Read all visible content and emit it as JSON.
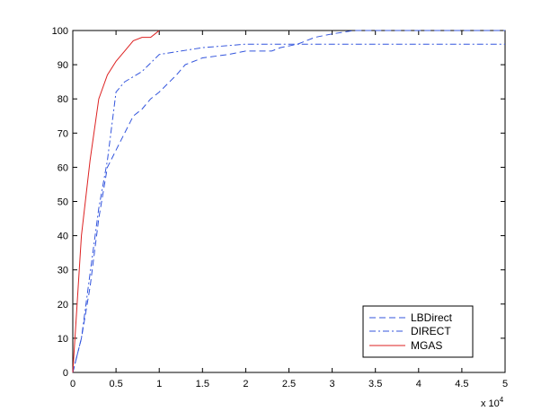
{
  "chart_data": {
    "type": "line",
    "title": "",
    "xlabel": "",
    "ylabel": "",
    "x_exponent_label": "x 10",
    "x_exponent_power": "4",
    "xlim": [
      0,
      5
    ],
    "ylim": [
      0,
      100
    ],
    "x_ticks": [
      0,
      0.5,
      1,
      1.5,
      2,
      2.5,
      3,
      3.5,
      4,
      4.5,
      5
    ],
    "x_tick_labels": [
      "0",
      "0.5",
      "1",
      "1.5",
      "2",
      "2.5",
      "3",
      "3.5",
      "4",
      "4.5",
      "5"
    ],
    "y_ticks": [
      0,
      10,
      20,
      30,
      40,
      50,
      60,
      70,
      80,
      90,
      100
    ],
    "y_tick_labels": [
      "0",
      "10",
      "20",
      "30",
      "40",
      "50",
      "60",
      "70",
      "80",
      "90",
      "100"
    ],
    "grid": false,
    "legend_position": "bottom-right",
    "series": [
      {
        "name": "LBDirect",
        "color": "#3355dd",
        "dash": "dashed",
        "points": [
          [
            0,
            0
          ],
          [
            0.1,
            10
          ],
          [
            0.2,
            25
          ],
          [
            0.3,
            45
          ],
          [
            0.4,
            60
          ],
          [
            0.5,
            65
          ],
          [
            0.6,
            70
          ],
          [
            0.7,
            75
          ],
          [
            0.8,
            77
          ],
          [
            0.9,
            80
          ],
          [
            1.0,
            82
          ],
          [
            1.2,
            87
          ],
          [
            1.3,
            90
          ],
          [
            1.5,
            92
          ],
          [
            1.8,
            93
          ],
          [
            2.0,
            94
          ],
          [
            2.3,
            94
          ],
          [
            2.4,
            95
          ],
          [
            2.6,
            96
          ],
          [
            2.8,
            98
          ],
          [
            3.0,
            99
          ],
          [
            3.25,
            100
          ],
          [
            5.0,
            100
          ]
        ]
      },
      {
        "name": "DIRECT",
        "color": "#3355dd",
        "dash": "dashdot",
        "points": [
          [
            0,
            0
          ],
          [
            0.1,
            10
          ],
          [
            0.3,
            48
          ],
          [
            0.4,
            62
          ],
          [
            0.5,
            82
          ],
          [
            0.6,
            85
          ],
          [
            0.8,
            88
          ],
          [
            1.0,
            93
          ],
          [
            1.5,
            95
          ],
          [
            2.0,
            96
          ],
          [
            5.0,
            96
          ]
        ]
      },
      {
        "name": "MGAS",
        "color": "#dd2222",
        "dash": "solid",
        "points": [
          [
            0,
            0
          ],
          [
            0.05,
            20
          ],
          [
            0.1,
            40
          ],
          [
            0.2,
            62
          ],
          [
            0.3,
            80
          ],
          [
            0.4,
            87
          ],
          [
            0.5,
            91
          ],
          [
            0.6,
            94
          ],
          [
            0.7,
            97
          ],
          [
            0.8,
            98
          ],
          [
            0.9,
            98
          ],
          [
            0.95,
            99
          ],
          [
            1.0,
            100
          ]
        ]
      }
    ]
  }
}
